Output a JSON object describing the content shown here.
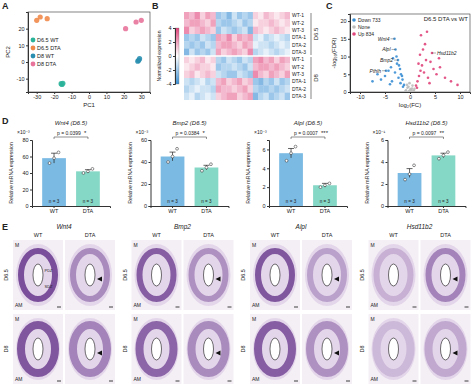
{
  "panel_labels": [
    "A",
    "B",
    "C",
    "D",
    "E"
  ],
  "chart_data": [
    {
      "type": "scatter",
      "xlabel": "PC1",
      "ylabel": "PC2",
      "xlim": [
        -35,
        35
      ],
      "ylim": [
        -18,
        30
      ],
      "xticks": [
        -30,
        -20,
        -10,
        0,
        10,
        20,
        30
      ],
      "yticks": [
        -10,
        0,
        10,
        20
      ],
      "legend": "left",
      "series": [
        {
          "name": "D6.5 WT",
          "color": "#2bb39a",
          "x": [
            -16,
            -15.5,
            -15
          ],
          "y": [
            -13,
            -13.5,
            -12.8
          ]
        },
        {
          "name": "D6.5 DTA",
          "color": "#f08a4b",
          "x": [
            -30,
            -28,
            -24
          ],
          "y": [
            25,
            27,
            26
          ]
        },
        {
          "name": "D8 WT",
          "color": "#2a8fb0",
          "x": [
            28,
            28.5,
            29
          ],
          "y": [
            0.5,
            1,
            2
          ]
        },
        {
          "name": "D8 DTA",
          "color": "#e8749c",
          "x": [
            21,
            27,
            30
          ],
          "y": [
            20,
            24,
            25
          ]
        }
      ]
    },
    {
      "type": "heatmap",
      "rows": [
        "WT-1",
        "WT-2",
        "WT-3",
        "DTA-1",
        "DTA-2",
        "DTA-3",
        "WT-1",
        "WT-2",
        "WT-3",
        "DTA-1",
        "DTA-2",
        "DTA-3"
      ],
      "row_groups": [
        "D6.5",
        "D8"
      ],
      "colorbar": {
        "label": "Normalized expression",
        "range": [
          -4,
          4
        ],
        "ticks": [
          4,
          2,
          0,
          -2,
          -4
        ]
      },
      "cells": [
        [
          2,
          1.5,
          2.5,
          1,
          2,
          1.5,
          -2,
          -1.5,
          -2.5,
          -1,
          -2,
          -1.5,
          -2,
          1,
          0.5,
          1.5,
          1,
          0.5,
          1,
          1.5
        ],
        [
          1.5,
          2,
          2,
          1.5,
          1,
          2,
          -1.5,
          -2,
          -2,
          -1.5,
          -1,
          -2,
          -1.5,
          0.5,
          1,
          1,
          1.5,
          1,
          0.5,
          1
        ],
        [
          2.5,
          1,
          1.5,
          2,
          1.5,
          1,
          -2,
          -1,
          -1.5,
          -2,
          -1.5,
          -1,
          -2.5,
          1.5,
          1,
          0.5,
          1,
          1.5,
          1,
          0.5
        ],
        [
          -2,
          -1.5,
          -2,
          -1,
          -1.5,
          -2,
          2,
          1.5,
          2.5,
          1,
          2,
          1.5,
          2,
          -1,
          -0.5,
          -1.5,
          -1,
          -0.5,
          -1,
          -1.5
        ],
        [
          -1.5,
          -2,
          -1.5,
          -2,
          -1,
          -1.5,
          1.5,
          2,
          2,
          1.5,
          1,
          2,
          1.5,
          -0.5,
          -1,
          -1,
          -1.5,
          -1,
          -0.5,
          -1
        ],
        [
          -2.5,
          -1,
          -2,
          -1.5,
          -2,
          -1,
          2,
          1,
          1.5,
          2,
          1.5,
          1,
          2.5,
          -1.5,
          -1,
          -0.5,
          -1,
          -1.5,
          -1,
          -0.5
        ],
        [
          1,
          0.5,
          1,
          1.5,
          0.5,
          1,
          -1.5,
          -2,
          -1,
          -1.5,
          -2,
          -1,
          -1.5,
          2,
          2.5,
          1.5,
          2,
          1,
          2,
          1.5
        ],
        [
          0.5,
          1,
          1.5,
          1,
          1,
          0.5,
          -2,
          -1.5,
          -1.5,
          -1,
          -1.5,
          -2,
          -1,
          1.5,
          2,
          2,
          1.5,
          2,
          1.5,
          1
        ],
        [
          1,
          1.5,
          0.5,
          1,
          1.5,
          1,
          -1,
          -1.5,
          -2,
          -2,
          -1,
          -1.5,
          -2,
          2.5,
          1.5,
          1,
          2,
          1.5,
          1,
          2
        ],
        [
          -1,
          -1.5,
          -1,
          -0.5,
          -1.5,
          -1,
          1.5,
          2,
          1,
          1.5,
          2,
          1,
          1.5,
          -2,
          -2.5,
          -1.5,
          -2,
          -1,
          -2,
          -1.5
        ],
        [
          -1.5,
          -1,
          -0.5,
          -1,
          -1,
          -1.5,
          2,
          1.5,
          1.5,
          1,
          1.5,
          2,
          1,
          -1.5,
          -2,
          -2,
          -1.5,
          -2,
          -1.5,
          -1
        ],
        [
          -1,
          -0.5,
          -1.5,
          -1,
          -0.5,
          -1,
          1,
          1.5,
          2,
          2,
          1,
          1.5,
          2,
          -2.5,
          -1.5,
          -1,
          -2,
          -1.5,
          -1,
          -2
        ]
      ]
    },
    {
      "type": "scatter",
      "title": "D6.5 DTA vs WT",
      "xlabel": "log₂(FC)",
      "ylabel": "-log₁₀(FDR)",
      "xlim": [
        -12,
        12
      ],
      "ylim": [
        0,
        22
      ],
      "xticks": [
        -10,
        -5,
        0,
        5,
        10
      ],
      "yticks": [
        0,
        5,
        10,
        15,
        20
      ],
      "legend": "top-left",
      "series": [
        {
          "name": "Down 733",
          "color": "#3b8fd4",
          "x": [
            -1.2,
            -1.5,
            -1.8,
            -2.0,
            -2.3,
            -2.6,
            -3.0,
            -3.4,
            -3.8,
            -4.3,
            -5.0,
            -5.8,
            -6.5,
            -7.5,
            -1.4,
            -1.9,
            -2.4,
            -2.9,
            -3.6,
            -4.8,
            -2.2,
            -3.1,
            -1.6,
            -2.7,
            -4.0
          ],
          "y": [
            2.0,
            3.5,
            5.0,
            6.5,
            4.0,
            8.0,
            5.5,
            9.5,
            7.0,
            6.0,
            4.5,
            3.5,
            5.0,
            3.0,
            1.5,
            2.5,
            9.0,
            12.0,
            3.0,
            6.0,
            7.5,
            15.0,
            4.5,
            10.0,
            2.2
          ]
        },
        {
          "name": "None",
          "color": "#bdbdbd",
          "x": [
            -0.8,
            -0.5,
            -0.2,
            0.1,
            0.4,
            0.7,
            0.9,
            -0.6,
            -0.3,
            0.2,
            0.5,
            -0.9,
            0.8,
            -0.1,
            0.3
          ],
          "y": [
            0.5,
            1.2,
            0.3,
            0.8,
            1.0,
            0.4,
            0.9,
            2.0,
            1.5,
            0.6,
            1.8,
            0.2,
            0.3,
            2.5,
            0.1
          ]
        },
        {
          "name": "Up 834",
          "color": "#e0457b",
          "x": [
            1.2,
            1.5,
            1.8,
            2.1,
            2.4,
            2.8,
            3.2,
            3.6,
            4.1,
            4.7,
            5.3,
            6.0,
            7.0,
            8.2,
            9.5,
            1.4,
            2.0,
            2.6,
            3.0,
            3.9,
            2.2,
            1.7,
            5.8,
            4.4,
            3.4
          ],
          "y": [
            1.8,
            3.0,
            4.5,
            6.0,
            7.5,
            5.5,
            9.0,
            4.0,
            8.5,
            6.5,
            5.0,
            7.0,
            4.0,
            3.0,
            2.0,
            1.2,
            10.5,
            12.0,
            13.5,
            2.5,
            16.0,
            8.0,
            9.5,
            11.0,
            17.0
          ]
        }
      ],
      "annotations": [
        {
          "text": "Wnt4",
          "x": -3.1,
          "y": 15.0
        },
        {
          "text": "Alpl",
          "x": -2.9,
          "y": 12.0
        },
        {
          "text": "Bmp2",
          "x": -2.4,
          "y": 9.0
        },
        {
          "text": "Pthlh",
          "x": -4.8,
          "y": 6.0
        },
        {
          "text": "Hsd11b2",
          "x": 4.4,
          "y": 11.0
        }
      ]
    },
    {
      "type": "bar",
      "title": "Wnt4 (D6.5)",
      "ylabel": "Relative mRNA expression",
      "scale_label": "×10⁻³",
      "categories": [
        "WT",
        "DTA"
      ],
      "values": [
        58,
        42
      ],
      "errors": [
        6,
        2
      ],
      "points": [
        [
          52,
          58,
          65
        ],
        [
          40,
          42,
          45
        ]
      ],
      "colors": [
        "#5aa9dc",
        "#66cdb8"
      ],
      "ylim": [
        0,
        80
      ],
      "yticks": [
        0,
        20,
        40,
        60,
        80
      ],
      "bar_labels": [
        "n = 3",
        "n = 3"
      ],
      "p_value": "p = 0.0399",
      "significance": "*"
    },
    {
      "type": "bar",
      "title": "Bmp2 (D6.5)",
      "ylabel": "Relative mRNA expression",
      "scale_label": "×10⁻³",
      "categories": [
        "WT",
        "DTA"
      ],
      "values": [
        45,
        35
      ],
      "errors": [
        4,
        2
      ],
      "points": [
        [
          40,
          45,
          52
        ],
        [
          32,
          35,
          38
        ]
      ],
      "colors": [
        "#5aa9dc",
        "#66cdb8"
      ],
      "ylim": [
        0,
        60
      ],
      "yticks": [
        0,
        20,
        40,
        60
      ],
      "bar_labels": [
        "n = 3",
        "n = 3"
      ],
      "p_value": "p = 0.0384",
      "significance": "*"
    },
    {
      "type": "bar",
      "title": "Alpl (D6.5)",
      "ylabel": "Relative mRNA expression",
      "scale_label": "×10⁻³",
      "categories": [
        "WT",
        "DTA"
      ],
      "values": [
        5.6,
        2.2
      ],
      "errors": [
        0.5,
        0.2
      ],
      "points": [
        [
          4.8,
          5.6,
          6.3
        ],
        [
          2.0,
          2.2,
          2.4
        ]
      ],
      "colors": [
        "#5aa9dc",
        "#66cdb8"
      ],
      "ylim": [
        0,
        7
      ],
      "yticks": [
        0,
        2,
        4,
        6
      ],
      "bar_labels": [
        "n = 3",
        "n = 3"
      ],
      "p_value": "p = 0.0007",
      "significance": "***"
    },
    {
      "type": "bar",
      "title": "Hsd11b2 (D6.5)",
      "ylabel": "Relative mRNA expression",
      "scale_label": "×10⁻¹",
      "categories": [
        "WT",
        "DTA"
      ],
      "values": [
        3.0,
        4.6
      ],
      "errors": [
        0.4,
        0.2
      ],
      "points": [
        [
          2.4,
          2.9,
          3.7
        ],
        [
          4.3,
          4.6,
          4.9
        ]
      ],
      "colors": [
        "#5aa9dc",
        "#66cdb8"
      ],
      "ylim": [
        0,
        6
      ],
      "yticks": [
        0,
        2,
        4,
        6
      ],
      "bar_labels": [
        "n = 3",
        "n = 3"
      ],
      "p_value": "p = 0.0097",
      "significance": "**"
    }
  ],
  "images": {
    "genes": [
      "Wnt4",
      "Bmp2",
      "Alpl",
      "Hsd11b2"
    ],
    "row_labels": [
      "D6.5",
      "D8"
    ],
    "column_labels": [
      "WT",
      "DTA"
    ],
    "region_labels": [
      "M",
      "AM"
    ],
    "zone_labels": [
      "PDZ",
      "SDZ"
    ]
  }
}
